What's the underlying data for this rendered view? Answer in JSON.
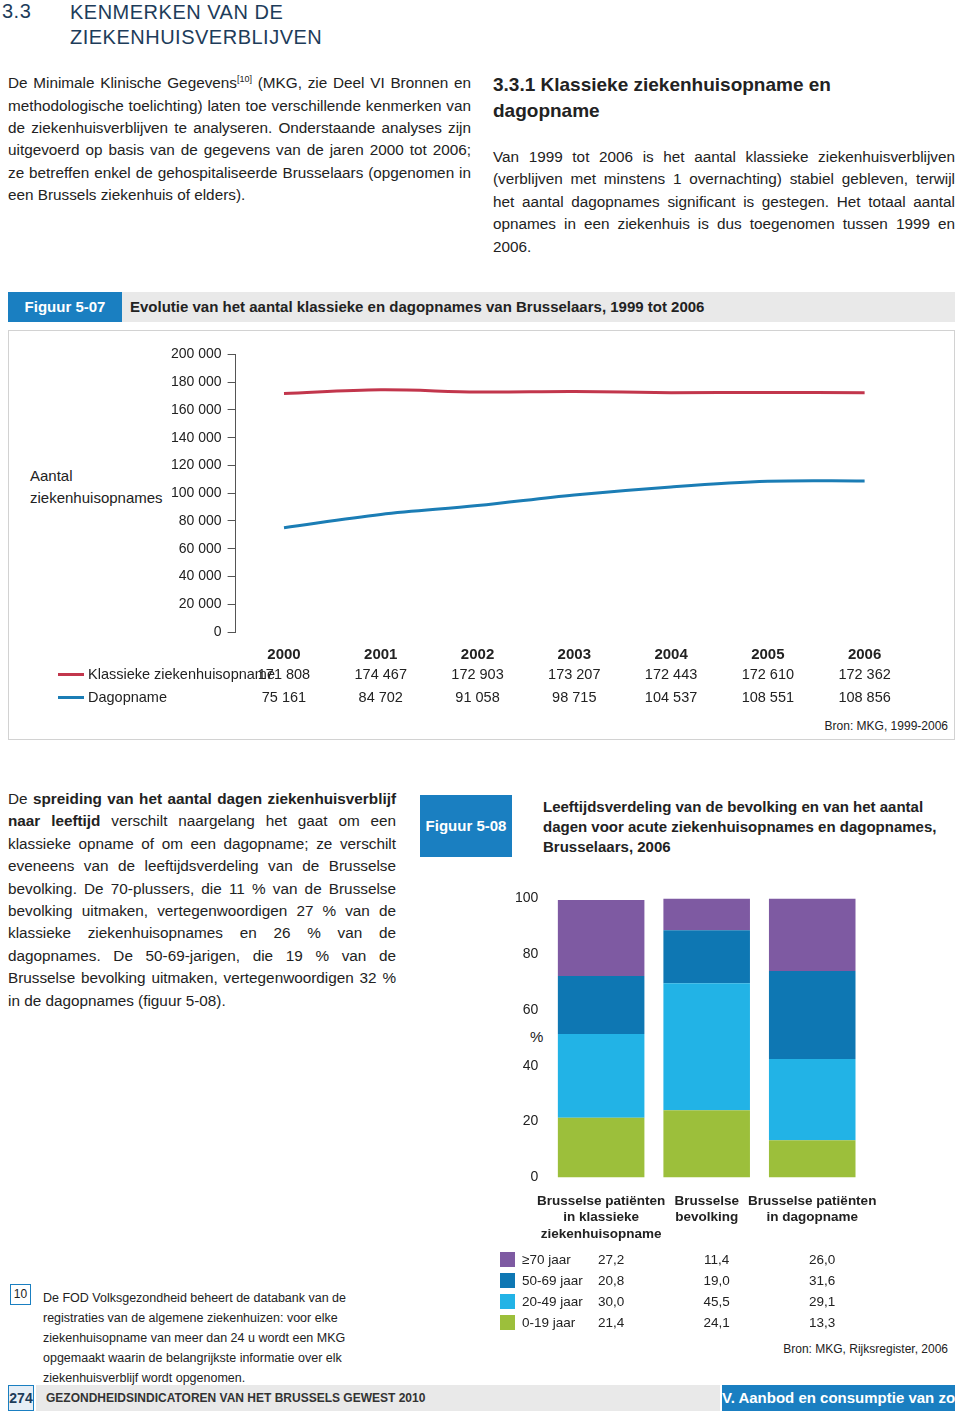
{
  "section_heading": {
    "number": "3.3",
    "title": "KENMERKEN VAN DE ZIEKENHUISVERBLIJVEN"
  },
  "intro": {
    "before_ref": "De Minimale Klinische Gegevens",
    "ref": "[10]",
    "after_ref": " (MKG, zie Deel VI Bronnen en methodologische toelichting) laten toe verschillende kenmerken van de ziekenhuisverblijven te analyseren. Onderstaande analyses zijn uitgevoerd op basis van de gegevens van de jaren 2000 tot 2006; ze betreffen enkel de gehospitaliseerde Brusselaars (opgenomen in een Brussels ziekenhuis of elders)."
  },
  "subsection": {
    "number": "3.3.1",
    "title": "Klassieke ziekenhuisopname en dagopname",
    "text": "Van 1999 tot 2006 is het aantal klassieke ziekenhuisverblijven (verblijven met minstens 1 overnachting) stabiel gebleven, terwijl het aantal dagopnames significant is gestegen. Het totaal aantal opnames in een ziekenhuis is dus toegenomen tussen 1999 en 2006."
  },
  "age_paragraph": [
    {
      "text": "De ",
      "bold": false
    },
    {
      "text": "spreiding van het aantal dagen ziekenhuisverblijf naar leeftijd",
      "bold": true
    },
    {
      "text": " verschilt naargelang het gaat om een klassieke opname of om een dagopname; ze verschilt eveneens van de leeftijdsverdeling van de Brusselse bevolking. De 70-plussers, die 11 % van de Brusselse bevolking uitmaken, vertegenwoordigen 27 % van de klassieke ziekenhuisopnames en 26 % van de dagopnames. De 50-69-jarigen, die 19 % van de Brusselse bevolking uitmaken, vertegenwoordigen 32 % in de dagopnames (figuur 5-08).",
      "bold": false
    }
  ],
  "chart_data": [
    {
      "type": "line",
      "figure_label": "Figuur 5-07",
      "title": "Evolutie van het aantal klassieke en dagopnames van Brusselaars, 1999 tot 2006",
      "y_label": "Aantal ziekenhuisopnames",
      "source": "Bron: MKG, 1999-2006",
      "categories": [
        "2000",
        "2001",
        "2002",
        "2003",
        "2004",
        "2005",
        "2006"
      ],
      "series": [
        {
          "name": "Klassieke ziekenhuisopname",
          "color": "#c2364c",
          "values": [
            171808,
            174467,
            172903,
            173207,
            172443,
            172610,
            172362
          ],
          "value_labels": [
            "171 808",
            "174 467",
            "172 903",
            "173 207",
            "172 443",
            "172 610",
            "172 362"
          ]
        },
        {
          "name": "Dagopname",
          "color": "#1b7db5",
          "values": [
            75161,
            84702,
            91058,
            98715,
            104537,
            108551,
            108856
          ],
          "value_labels": [
            "75 161",
            "84 702",
            "91 058",
            "98 715",
            "104 537",
            "108 551",
            "108 856"
          ]
        }
      ],
      "ylim": [
        0,
        200000
      ],
      "yticks": [
        0,
        {
          "value": 20000,
          "label": "20 000"
        },
        {
          "value": 40000,
          "label": "40 000"
        },
        {
          "value": 60000,
          "label": "60 000"
        },
        {
          "value": 80000,
          "label": "80 000"
        },
        {
          "value": 100000,
          "label": "100 000"
        },
        {
          "value": 120000,
          "label": "120 000"
        },
        {
          "value": 140000,
          "label": "140 000"
        },
        {
          "value": 160000,
          "label": "160 000"
        },
        {
          "value": 180000,
          "label": "180 000"
        },
        {
          "value": 200000,
          "label": "200 000"
        }
      ],
      "grid": false,
      "data_labels": true
    },
    {
      "type": "bar",
      "figure_label": "Figuur 5-08",
      "title": "Leeftijdsverdeling van de bevolking en van het aantal dagen voor acute ziekenhuisopnames en dagopnames, Brusselaars, 2006",
      "y_label": "%",
      "source": "Bron: MKG, Rijksregister, 2006",
      "categories": [
        [
          "Brusselse patiënten",
          "in klassieke",
          "ziekenhuisopname"
        ],
        [
          "Brusselse",
          "bevolking"
        ],
        [
          "Brusselse patiënten",
          "in dagopname"
        ]
      ],
      "series": [
        {
          "name": "0-19 jaar",
          "color": "#9cbf3b",
          "values": [
            21.4,
            24.1,
            13.3
          ],
          "value_labels": [
            "21,4",
            "24,1",
            "13,3"
          ]
        },
        {
          "name": "20-49 jaar",
          "color": "#22b3e6",
          "values": [
            30.0,
            45.5,
            29.1
          ],
          "value_labels": [
            "30,0",
            "45,5",
            "29,1"
          ]
        },
        {
          "name": "50-69 jaar",
          "color": "#0e77b3",
          "values": [
            20.8,
            19.0,
            31.6
          ],
          "value_labels": [
            "20,8",
            "19,0",
            "31,6"
          ]
        },
        {
          "name": "≥70 jaar",
          "color": "#7e5aa2",
          "values": [
            27.2,
            11.4,
            26.0
          ],
          "value_labels": [
            "27,2",
            "11,4",
            "26,0"
          ]
        }
      ],
      "stacked": true,
      "ylim": [
        0,
        100
      ],
      "yticks": [
        0,
        20,
        40,
        60,
        80,
        100
      ],
      "grid": false,
      "data_labels": true
    }
  ],
  "footnote": {
    "number": "10",
    "text": "De FOD Volksgezondheid beheert de databank van de registraties van de algemene ziekenhuizen: voor elke ziekenhuisopname van meer dan 24 u wordt een MKG opgemaakt waarin de belangrijkste informatie over elk ziekenhuisverblijf wordt opgenomen."
  },
  "footer": {
    "page": "274",
    "publication": "GEZONDHEIDSINDICATOREN VAN HET BRUSSELS GEWEST 2010",
    "chapter": "V. Aanbod en consumptie van zorg"
  }
}
